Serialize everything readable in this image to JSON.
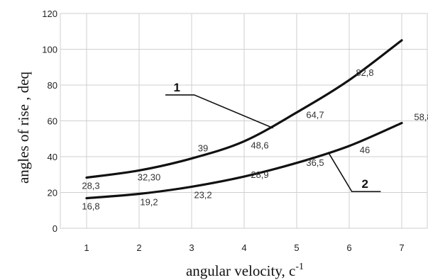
{
  "chart_data": {
    "type": "line",
    "xlabel": "angular velocity",
    "xlabel_unit": "c",
    "xlabel_unit_sup": "-1",
    "ylabel": "angles of rise , deq",
    "xlim": [
      0.5,
      7.5
    ],
    "ylim": [
      0,
      120
    ],
    "xticks": [
      1,
      2,
      3,
      4,
      5,
      6,
      7
    ],
    "yticks": [
      0,
      20,
      40,
      60,
      80,
      100,
      120
    ],
    "grid": true,
    "series": [
      {
        "name": "1",
        "x": [
          1,
          2,
          3,
          4,
          5,
          6,
          7
        ],
        "y": [
          28.3,
          32.3,
          39,
          48.6,
          64.7,
          82.8,
          105
        ],
        "data_labels": [
          "28,3",
          "32,30",
          "39",
          "48,6",
          "64,7",
          "82,8",
          ""
        ]
      },
      {
        "name": "2",
        "x": [
          1,
          2,
          3,
          4,
          5,
          6,
          7
        ],
        "y": [
          16.8,
          19.2,
          23.2,
          28.9,
          36.5,
          46,
          58.8
        ],
        "data_labels": [
          "16,8",
          "19,2",
          "23,2",
          "28,9",
          "36,5",
          "46",
          "58,8"
        ]
      }
    ]
  }
}
